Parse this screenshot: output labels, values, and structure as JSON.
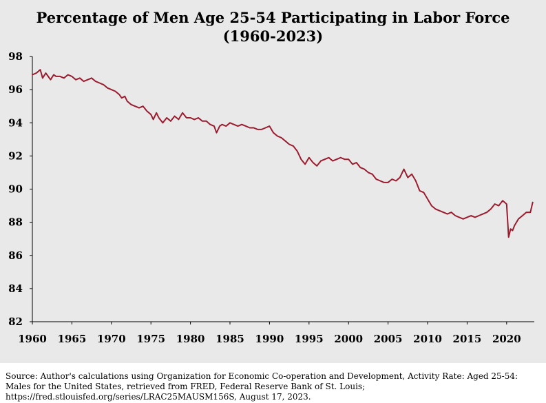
{
  "chart_data": {
    "type": "line",
    "title": "Percentage of Men Age 25-54 Participating in Labor Force",
    "subtitle": "(1960-2023)",
    "xlabel": "",
    "ylabel": "",
    "xlim": [
      1960,
      2023.5
    ],
    "ylim": [
      82,
      98
    ],
    "x_ticks": [
      "1960",
      "1965",
      "1970",
      "1975",
      "1980",
      "1985",
      "1990",
      "1995",
      "2000",
      "2005",
      "2010",
      "2015",
      "2020"
    ],
    "y_ticks": [
      "82",
      "84",
      "86",
      "88",
      "90",
      "92",
      "94",
      "96",
      "98"
    ],
    "grid": false,
    "line_color": "#9b1c2e",
    "series": [
      {
        "name": "",
        "x": [
          1960.0,
          1960.5,
          1961.0,
          1961.3,
          1961.7,
          1962.0,
          1962.3,
          1962.7,
          1963.0,
          1963.5,
          1964.0,
          1964.5,
          1965.0,
          1965.5,
          1966.0,
          1966.5,
          1967.0,
          1967.5,
          1968.0,
          1968.5,
          1969.0,
          1969.5,
          1970.0,
          1970.5,
          1971.0,
          1971.3,
          1971.7,
          1972.0,
          1972.5,
          1973.0,
          1973.5,
          1974.0,
          1974.5,
          1975.0,
          1975.3,
          1975.7,
          1976.0,
          1976.5,
          1977.0,
          1977.5,
          1978.0,
          1978.5,
          1979.0,
          1979.5,
          1980.0,
          1980.5,
          1981.0,
          1981.5,
          1982.0,
          1982.5,
          1983.0,
          1983.3,
          1983.7,
          1984.0,
          1984.5,
          1985.0,
          1985.5,
          1986.0,
          1986.5,
          1987.0,
          1987.5,
          1988.0,
          1988.5,
          1989.0,
          1989.5,
          1990.0,
          1990.5,
          1991.0,
          1991.5,
          1992.0,
          1992.5,
          1993.0,
          1993.5,
          1994.0,
          1994.5,
          1995.0,
          1995.5,
          1996.0,
          1996.5,
          1997.0,
          1997.5,
          1998.0,
          1998.5,
          1999.0,
          1999.5,
          2000.0,
          2000.5,
          2001.0,
          2001.5,
          2002.0,
          2002.5,
          2003.0,
          2003.5,
          2004.0,
          2004.5,
          2005.0,
          2005.5,
          2006.0,
          2006.5,
          2007.0,
          2007.5,
          2008.0,
          2008.5,
          2009.0,
          2009.5,
          2010.0,
          2010.5,
          2011.0,
          2011.5,
          2012.0,
          2012.5,
          2013.0,
          2013.5,
          2014.0,
          2014.5,
          2015.0,
          2015.5,
          2016.0,
          2016.5,
          2017.0,
          2017.5,
          2018.0,
          2018.5,
          2019.0,
          2019.5,
          2020.0,
          2020.25,
          2020.5,
          2020.75,
          2021.0,
          2021.5,
          2022.0,
          2022.5,
          2023.0,
          2023.3
        ],
        "values": [
          96.9,
          97.0,
          97.2,
          96.7,
          97.0,
          96.8,
          96.6,
          96.9,
          96.8,
          96.8,
          96.7,
          96.9,
          96.8,
          96.6,
          96.7,
          96.5,
          96.6,
          96.7,
          96.5,
          96.4,
          96.3,
          96.1,
          96.0,
          95.9,
          95.7,
          95.5,
          95.6,
          95.3,
          95.1,
          95.0,
          94.9,
          95.0,
          94.7,
          94.5,
          94.2,
          94.6,
          94.3,
          94.0,
          94.3,
          94.1,
          94.4,
          94.2,
          94.6,
          94.3,
          94.3,
          94.2,
          94.3,
          94.1,
          94.1,
          93.9,
          93.8,
          93.4,
          93.8,
          93.9,
          93.8,
          94.0,
          93.9,
          93.8,
          93.9,
          93.8,
          93.7,
          93.7,
          93.6,
          93.6,
          93.7,
          93.8,
          93.4,
          93.2,
          93.1,
          92.9,
          92.7,
          92.6,
          92.3,
          91.8,
          91.5,
          91.9,
          91.6,
          91.4,
          91.7,
          91.8,
          91.9,
          91.7,
          91.8,
          91.9,
          91.8,
          91.8,
          91.5,
          91.6,
          91.3,
          91.2,
          91.0,
          90.9,
          90.6,
          90.5,
          90.4,
          90.4,
          90.6,
          90.5,
          90.7,
          91.2,
          90.7,
          90.9,
          90.5,
          89.9,
          89.8,
          89.4,
          89.0,
          88.8,
          88.7,
          88.6,
          88.5,
          88.6,
          88.4,
          88.3,
          88.2,
          88.3,
          88.4,
          88.3,
          88.4,
          88.5,
          88.6,
          88.8,
          89.1,
          89.0,
          89.3,
          89.1,
          87.1,
          87.6,
          87.5,
          87.8,
          88.2,
          88.4,
          88.6,
          88.6,
          89.2
        ]
      }
    ]
  },
  "source_note": "Source: Author's calculations using Organization for Economic Co-operation and Development, Activity Rate: Aged 25-54: Males for the United States, retrieved from FRED, Federal Reserve Bank of St. Louis; https://fred.stlouisfed.org/series/LRAC25MAUSM156S, August 17, 2023."
}
